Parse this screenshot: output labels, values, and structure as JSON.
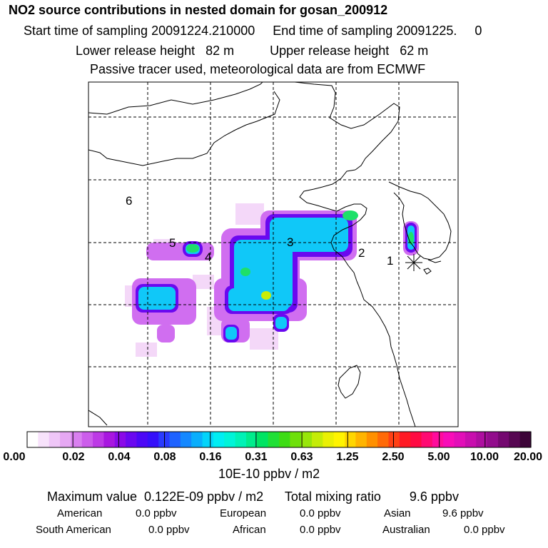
{
  "header": {
    "title": "NO2 source contributions in nested domain for gosan_200912",
    "line2": "Start time of sampling 20091224.210000     End time of sampling 20091225.     0",
    "line3": "Lower release height   82 m          Upper release height   62 m",
    "line4": "Passive tracer used, meteorological data are from ECMWF"
  },
  "map": {
    "region_labels": [
      "1",
      "2",
      "3",
      "4",
      "5",
      "6"
    ],
    "grid": true,
    "receptor_marker": "asterisk-icon"
  },
  "colorbar": {
    "tick_labels": [
      "0.00",
      "0.02",
      "0.04",
      "0.08",
      "0.16",
      "0.31",
      "0.63",
      "1.25",
      "2.50",
      "5.00",
      "10.00",
      "20.00"
    ],
    "colors": [
      "#ffffff",
      "#f7e2fb",
      "#efc6f7",
      "#e6a8f3",
      "#d97ff0",
      "#cc5deb",
      "#bd3ae6",
      "#a817e0",
      "#8a0ae8",
      "#6a08f0",
      "#4c08f6",
      "#3510fa",
      "#2a3aff",
      "#1e62ff",
      "#1488ff",
      "#0aaefc",
      "#04d4fa",
      "#00eef2",
      "#00f4d8",
      "#00f2b6",
      "#00ec8c",
      "#00e463",
      "#20e036",
      "#3edc14",
      "#6ee00a",
      "#98e60a",
      "#c4ec08",
      "#eaf004",
      "#fff400",
      "#ffd600",
      "#ffb400",
      "#ff9000",
      "#ff6a08",
      "#ff4014",
      "#ff1a24",
      "#ff0a42",
      "#ff0a72",
      "#ff0c9c",
      "#f80cb8",
      "#e20eb8",
      "#c80eae",
      "#ae0ea0",
      "#920c8c",
      "#740870",
      "#560652",
      "#3c0438"
    ],
    "unit": "10E-10 ppbv / m2"
  },
  "footer": {
    "max_line": "Maximum value  0.122E-09 ppbv / m2      Total mixing ratio        9.6 ppbv",
    "regions": [
      {
        "name": "American",
        "value": "0.0 ppbv"
      },
      {
        "name": "European",
        "value": "0.0 ppbv"
      },
      {
        "name": "Asian",
        "value": "9.6 ppbv"
      },
      {
        "name": "South American",
        "value": "0.0 ppbv"
      },
      {
        "name": "African",
        "value": "0.0 ppbv"
      },
      {
        "name": "Australian",
        "value": "0.0 ppbv"
      }
    ]
  }
}
